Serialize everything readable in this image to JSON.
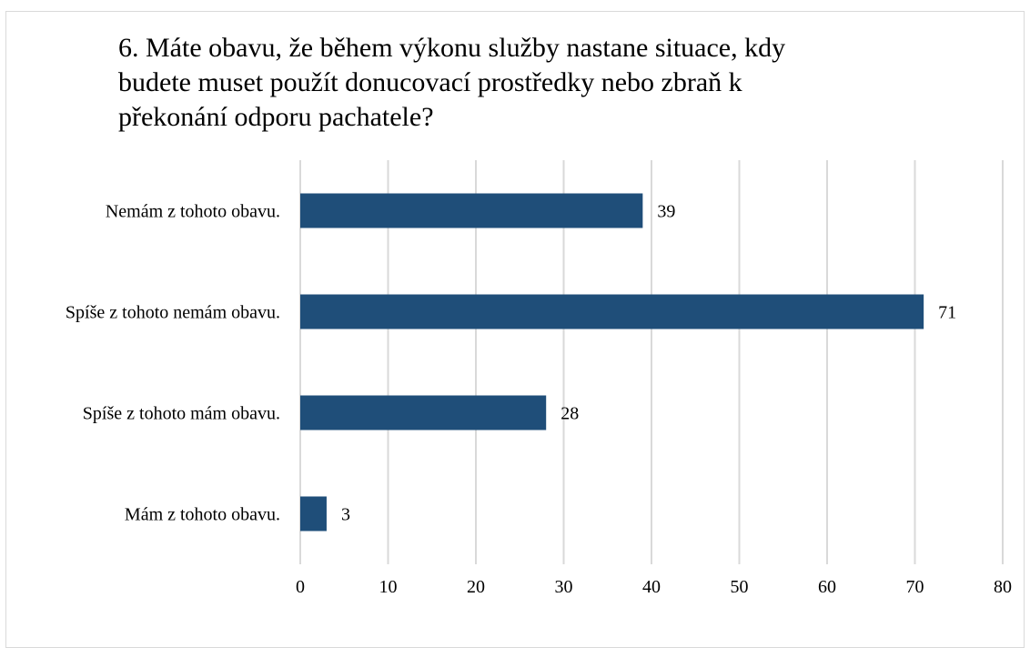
{
  "chart_data": {
    "type": "bar",
    "orientation": "horizontal",
    "title": "6. Máte obavu, že během výkonu služby nastane situace, kdy budete muset použít donucovací prostředky nebo zbraň k překonání odporu pachatele?",
    "categories": [
      "Nemám z tohoto obavu.",
      "Spíše z tohoto nemám obavu.",
      "Spíše z tohoto mám obavu.",
      "Mám z tohoto obavu."
    ],
    "values": [
      39,
      71,
      28,
      3
    ],
    "xlim": [
      0,
      80
    ],
    "x_ticks": [
      0,
      10,
      20,
      30,
      40,
      50,
      60,
      70,
      80
    ],
    "grid": "vertical",
    "legend": "none",
    "data_labels": true,
    "bar_color": "#1f4e79",
    "grid_color": "#d9d9d9"
  }
}
